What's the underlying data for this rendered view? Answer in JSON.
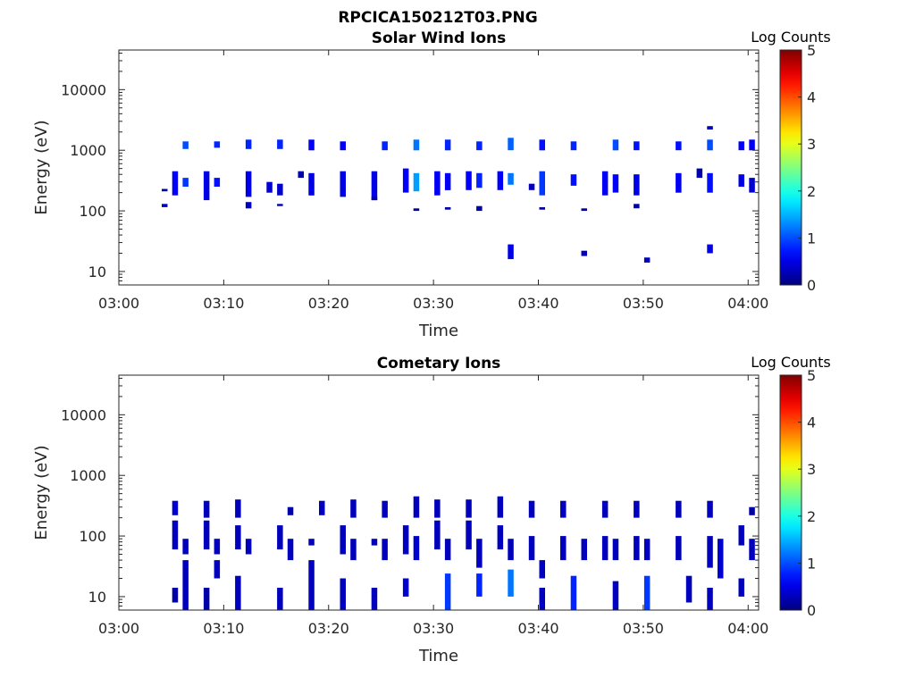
{
  "figure_title": "RPCICA150212T03.PNG",
  "chart_data": [
    {
      "type": "heatmap",
      "title": "Solar Wind Ions",
      "xlabel": "Time",
      "ylabel": "Energy (eV)",
      "y_scale": "log",
      "ylim": [
        6,
        45000
      ],
      "xlim": [
        "03:00",
        "04:01"
      ],
      "x_tick_labels": [
        "03:00",
        "03:10",
        "03:20",
        "03:30",
        "03:40",
        "03:50",
        "04:00"
      ],
      "y_tick_labels": [
        "10",
        "100",
        "1000",
        "10000"
      ],
      "colorbar": {
        "label": "Log Counts",
        "range": [
          0,
          5
        ],
        "tick_labels": [
          "0",
          "1",
          "2",
          "3",
          "4",
          "5"
        ],
        "colormap": "jet"
      },
      "grid": false,
      "bins": [
        {
          "t": "03:05",
          "e": [
            180,
            450
          ],
          "c": 0.6
        },
        {
          "t": "03:06",
          "e": [
            1050,
            1400
          ],
          "c": 1.0
        },
        {
          "t": "03:06",
          "e": [
            250,
            350
          ],
          "c": 0.9
        },
        {
          "t": "03:04",
          "e": [
            115,
            130
          ],
          "c": 0.3
        },
        {
          "t": "03:04",
          "e": [
            210,
            230
          ],
          "c": 0.2
        },
        {
          "t": "03:08",
          "e": [
            150,
            450
          ],
          "c": 0.5
        },
        {
          "t": "03:09",
          "e": [
            1100,
            1400
          ],
          "c": 0.8
        },
        {
          "t": "03:09",
          "e": [
            250,
            350
          ],
          "c": 0.7
        },
        {
          "t": "03:12",
          "e": [
            1050,
            1500
          ],
          "c": 0.8
        },
        {
          "t": "03:12",
          "e": [
            170,
            450
          ],
          "c": 0.5
        },
        {
          "t": "03:12",
          "e": [
            110,
            140
          ],
          "c": 0.3
        },
        {
          "t": "03:14",
          "e": [
            200,
            300
          ],
          "c": 0.4
        },
        {
          "t": "03:15",
          "e": [
            1050,
            1500
          ],
          "c": 0.8
        },
        {
          "t": "03:15",
          "e": [
            180,
            280
          ],
          "c": 0.4
        },
        {
          "t": "03:15",
          "e": [
            120,
            130
          ],
          "c": 0.2
        },
        {
          "t": "03:17",
          "e": [
            350,
            450
          ],
          "c": 0.2
        },
        {
          "t": "03:18",
          "e": [
            1000,
            1500
          ],
          "c": 0.6
        },
        {
          "t": "03:18",
          "e": [
            180,
            420
          ],
          "c": 0.5
        },
        {
          "t": "03:21",
          "e": [
            1000,
            1400
          ],
          "c": 0.6
        },
        {
          "t": "03:21",
          "e": [
            170,
            450
          ],
          "c": 0.5
        },
        {
          "t": "03:24",
          "e": [
            150,
            450
          ],
          "c": 0.5
        },
        {
          "t": "03:25",
          "e": [
            1000,
            1400
          ],
          "c": 0.8
        },
        {
          "t": "03:24",
          "e": [
            150,
            170
          ],
          "c": 0.2
        },
        {
          "t": "03:27",
          "e": [
            200,
            500
          ],
          "c": 0.6
        },
        {
          "t": "03:28",
          "e": [
            1000,
            1500
          ],
          "c": 1.2
        },
        {
          "t": "03:28",
          "e": [
            210,
            420
          ],
          "c": 1.4
        },
        {
          "t": "03:28",
          "e": [
            100,
            110
          ],
          "c": 0.2
        },
        {
          "t": "03:30",
          "e": [
            180,
            450
          ],
          "c": 0.6
        },
        {
          "t": "03:31",
          "e": [
            1000,
            1500
          ],
          "c": 0.8
        },
        {
          "t": "03:31",
          "e": [
            220,
            420
          ],
          "c": 0.6
        },
        {
          "t": "03:31",
          "e": [
            105,
            115
          ],
          "c": 0.2
        },
        {
          "t": "03:33",
          "e": [
            220,
            450
          ],
          "c": 0.6
        },
        {
          "t": "03:34",
          "e": [
            1000,
            1400
          ],
          "c": 0.8
        },
        {
          "t": "03:34",
          "e": [
            240,
            420
          ],
          "c": 0.8
        },
        {
          "t": "03:34",
          "e": [
            100,
            120
          ],
          "c": 0.2
        },
        {
          "t": "03:36",
          "e": [
            220,
            450
          ],
          "c": 0.6
        },
        {
          "t": "03:37",
          "e": [
            1000,
            1600
          ],
          "c": 1.1
        },
        {
          "t": "03:37",
          "e": [
            270,
            420
          ],
          "c": 1.2
        },
        {
          "t": "03:37",
          "e": [
            16,
            28
          ],
          "c": 0.5
        },
        {
          "t": "03:39",
          "e": [
            220,
            280
          ],
          "c": 0.3
        },
        {
          "t": "03:40",
          "e": [
            1000,
            1500
          ],
          "c": 0.7
        },
        {
          "t": "03:40",
          "e": [
            180,
            450
          ],
          "c": 0.9
        },
        {
          "t": "03:40",
          "e": [
            105,
            115
          ],
          "c": 0.2
        },
        {
          "t": "03:43",
          "e": [
            1000,
            1400
          ],
          "c": 0.8
        },
        {
          "t": "03:43",
          "e": [
            260,
            400
          ],
          "c": 0.7
        },
        {
          "t": "03:44",
          "e": [
            18,
            22
          ],
          "c": 0.3
        },
        {
          "t": "03:44",
          "e": [
            100,
            110
          ],
          "c": 0.2
        },
        {
          "t": "03:46",
          "e": [
            180,
            450
          ],
          "c": 0.6
        },
        {
          "t": "03:47",
          "e": [
            1000,
            1500
          ],
          "c": 1.0
        },
        {
          "t": "03:47",
          "e": [
            200,
            400
          ],
          "c": 0.6
        },
        {
          "t": "03:49",
          "e": [
            1000,
            1400
          ],
          "c": 0.7
        },
        {
          "t": "03:49",
          "e": [
            180,
            400
          ],
          "c": 0.5
        },
        {
          "t": "03:50",
          "e": [
            14,
            17
          ],
          "c": 0.3
        },
        {
          "t": "03:49",
          "e": [
            110,
            130
          ],
          "c": 0.2
        },
        {
          "t": "03:53",
          "e": [
            1000,
            1400
          ],
          "c": 0.7
        },
        {
          "t": "03:53",
          "e": [
            200,
            420
          ],
          "c": 0.6
        },
        {
          "t": "03:55",
          "e": [
            350,
            500
          ],
          "c": 0.2
        },
        {
          "t": "03:56",
          "e": [
            1000,
            1500
          ],
          "c": 1.0
        },
        {
          "t": "03:56",
          "e": [
            200,
            420
          ],
          "c": 0.7
        },
        {
          "t": "03:56",
          "e": [
            2200,
            2500
          ],
          "c": 0.3
        },
        {
          "t": "03:56",
          "e": [
            20,
            28
          ],
          "c": 0.5
        },
        {
          "t": "03:59",
          "e": [
            1000,
            1400
          ],
          "c": 0.6
        },
        {
          "t": "03:59",
          "e": [
            250,
            400
          ],
          "c": 0.5
        },
        {
          "t": "04:00",
          "e": [
            1000,
            1500
          ],
          "c": 0.6
        },
        {
          "t": "04:00",
          "e": [
            200,
            350
          ],
          "c": 0.4
        }
      ]
    },
    {
      "type": "heatmap",
      "title": "Cometary Ions",
      "xlabel": "Time",
      "ylabel": "Energy (eV)",
      "y_scale": "log",
      "ylim": [
        6,
        45000
      ],
      "xlim": [
        "03:00",
        "04:01"
      ],
      "x_tick_labels": [
        "03:00",
        "03:10",
        "03:20",
        "03:30",
        "03:40",
        "03:50",
        "04:00"
      ],
      "y_tick_labels": [
        "10",
        "100",
        "1000",
        "10000"
      ],
      "colorbar": {
        "label": "Log Counts",
        "range": [
          0,
          5
        ],
        "tick_labels": [
          "0",
          "1",
          "2",
          "3",
          "4",
          "5"
        ],
        "colormap": "jet"
      },
      "grid": false,
      "bins": [
        {
          "t": "03:05",
          "e": [
            220,
            380
          ],
          "c": 0.4
        },
        {
          "t": "03:05",
          "e": [
            60,
            180
          ],
          "c": 0.3
        },
        {
          "t": "03:05",
          "e": [
            8,
            14
          ],
          "c": 0.2
        },
        {
          "t": "03:06",
          "e": [
            50,
            90
          ],
          "c": 0.3
        },
        {
          "t": "03:06",
          "e": [
            6,
            40
          ],
          "c": 0.3
        },
        {
          "t": "03:08",
          "e": [
            200,
            380
          ],
          "c": 0.3
        },
        {
          "t": "03:08",
          "e": [
            60,
            180
          ],
          "c": 0.3
        },
        {
          "t": "03:08",
          "e": [
            6,
            14
          ],
          "c": 0.2
        },
        {
          "t": "03:09",
          "e": [
            50,
            90
          ],
          "c": 0.3
        },
        {
          "t": "03:09",
          "e": [
            20,
            40
          ],
          "c": 0.3
        },
        {
          "t": "03:11",
          "e": [
            200,
            400
          ],
          "c": 0.3
        },
        {
          "t": "03:11",
          "e": [
            60,
            150
          ],
          "c": 0.3
        },
        {
          "t": "03:11",
          "e": [
            6,
            22
          ],
          "c": 0.3
        },
        {
          "t": "03:12",
          "e": [
            50,
            90
          ],
          "c": 0.3
        },
        {
          "t": "03:15",
          "e": [
            60,
            150
          ],
          "c": 0.3
        },
        {
          "t": "03:15",
          "e": [
            6,
            14
          ],
          "c": 0.3
        },
        {
          "t": "03:16",
          "e": [
            40,
            90
          ],
          "c": 0.3
        },
        {
          "t": "03:16",
          "e": [
            220,
            300
          ],
          "c": 0.2
        },
        {
          "t": "03:18",
          "e": [
            70,
            90
          ],
          "c": 0.3
        },
        {
          "t": "03:18",
          "e": [
            6,
            40
          ],
          "c": 0.3
        },
        {
          "t": "03:19",
          "e": [
            220,
            380
          ],
          "c": 0.3
        },
        {
          "t": "03:21",
          "e": [
            50,
            150
          ],
          "c": 0.3
        },
        {
          "t": "03:21",
          "e": [
            6,
            20
          ],
          "c": 0.3
        },
        {
          "t": "03:22",
          "e": [
            40,
            90
          ],
          "c": 0.3
        },
        {
          "t": "03:22",
          "e": [
            200,
            400
          ],
          "c": 0.3
        },
        {
          "t": "03:24",
          "e": [
            70,
            90
          ],
          "c": 0.3
        },
        {
          "t": "03:24",
          "e": [
            6,
            14
          ],
          "c": 0.3
        },
        {
          "t": "03:25",
          "e": [
            200,
            380
          ],
          "c": 0.3
        },
        {
          "t": "03:25",
          "e": [
            40,
            90
          ],
          "c": 0.3
        },
        {
          "t": "03:27",
          "e": [
            50,
            150
          ],
          "c": 0.3
        },
        {
          "t": "03:27",
          "e": [
            10,
            20
          ],
          "c": 0.4
        },
        {
          "t": "03:28",
          "e": [
            200,
            450
          ],
          "c": 0.3
        },
        {
          "t": "03:28",
          "e": [
            40,
            100
          ],
          "c": 0.4
        },
        {
          "t": "03:30",
          "e": [
            200,
            400
          ],
          "c": 0.3
        },
        {
          "t": "03:30",
          "e": [
            60,
            180
          ],
          "c": 0.3
        },
        {
          "t": "03:31",
          "e": [
            6,
            24
          ],
          "c": 0.9
        },
        {
          "t": "03:31",
          "e": [
            40,
            90
          ],
          "c": 0.3
        },
        {
          "t": "03:33",
          "e": [
            200,
            400
          ],
          "c": 0.3
        },
        {
          "t": "03:33",
          "e": [
            60,
            180
          ],
          "c": 0.3
        },
        {
          "t": "03:34",
          "e": [
            10,
            24
          ],
          "c": 0.8
        },
        {
          "t": "03:34",
          "e": [
            30,
            90
          ],
          "c": 0.3
        },
        {
          "t": "03:36",
          "e": [
            200,
            450
          ],
          "c": 0.3
        },
        {
          "t": "03:36",
          "e": [
            60,
            150
          ],
          "c": 0.3
        },
        {
          "t": "03:37",
          "e": [
            10,
            28
          ],
          "c": 1.2
        },
        {
          "t": "03:37",
          "e": [
            40,
            90
          ],
          "c": 0.3
        },
        {
          "t": "03:39",
          "e": [
            200,
            380
          ],
          "c": 0.3
        },
        {
          "t": "03:39",
          "e": [
            40,
            100
          ],
          "c": 0.3
        },
        {
          "t": "03:40",
          "e": [
            6,
            14
          ],
          "c": 0.3
        },
        {
          "t": "03:40",
          "e": [
            20,
            40
          ],
          "c": 0.3
        },
        {
          "t": "03:42",
          "e": [
            200,
            380
          ],
          "c": 0.3
        },
        {
          "t": "03:42",
          "e": [
            40,
            100
          ],
          "c": 0.3
        },
        {
          "t": "03:43",
          "e": [
            6,
            22
          ],
          "c": 0.8
        },
        {
          "t": "03:44",
          "e": [
            40,
            90
          ],
          "c": 0.3
        },
        {
          "t": "03:46",
          "e": [
            200,
            380
          ],
          "c": 0.3
        },
        {
          "t": "03:46",
          "e": [
            40,
            100
          ],
          "c": 0.3
        },
        {
          "t": "03:47",
          "e": [
            6,
            18
          ],
          "c": 0.3
        },
        {
          "t": "03:47",
          "e": [
            40,
            90
          ],
          "c": 0.3
        },
        {
          "t": "03:49",
          "e": [
            200,
            380
          ],
          "c": 0.3
        },
        {
          "t": "03:49",
          "e": [
            40,
            100
          ],
          "c": 0.3
        },
        {
          "t": "03:50",
          "e": [
            6,
            22
          ],
          "c": 0.9
        },
        {
          "t": "03:50",
          "e": [
            40,
            90
          ],
          "c": 0.3
        },
        {
          "t": "03:53",
          "e": [
            200,
            380
          ],
          "c": 0.3
        },
        {
          "t": "03:53",
          "e": [
            40,
            100
          ],
          "c": 0.3
        },
        {
          "t": "03:54",
          "e": [
            8,
            22
          ],
          "c": 0.3
        },
        {
          "t": "03:56",
          "e": [
            200,
            380
          ],
          "c": 0.3
        },
        {
          "t": "03:56",
          "e": [
            30,
            100
          ],
          "c": 0.3
        },
        {
          "t": "03:56",
          "e": [
            6,
            14
          ],
          "c": 0.3
        },
        {
          "t": "03:57",
          "e": [
            20,
            90
          ],
          "c": 0.4
        },
        {
          "t": "03:59",
          "e": [
            70,
            150
          ],
          "c": 0.3
        },
        {
          "t": "03:59",
          "e": [
            10,
            20
          ],
          "c": 0.3
        },
        {
          "t": "04:00",
          "e": [
            40,
            90
          ],
          "c": 0.3
        },
        {
          "t": "04:00",
          "e": [
            220,
            300
          ],
          "c": 0.2
        }
      ]
    }
  ]
}
